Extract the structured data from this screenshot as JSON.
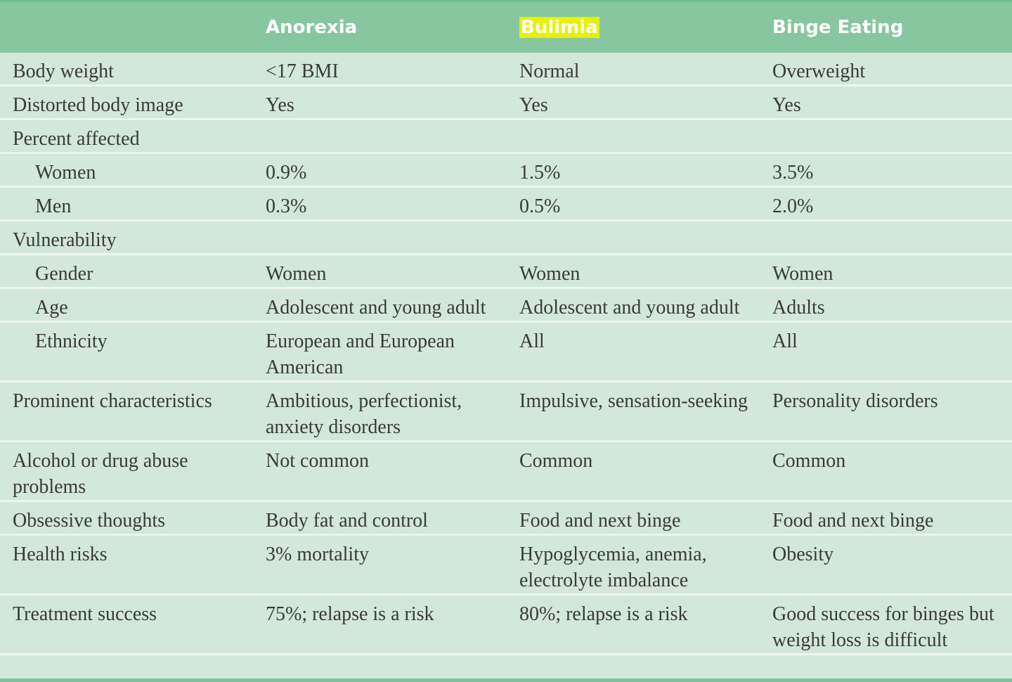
{
  "table": {
    "columns": [
      "Anorexia",
      "Bulimia",
      "Binge Eating"
    ],
    "rows": [
      {
        "label": "Body weight",
        "cells": [
          "<17 BMI",
          "Normal",
          "Overweight"
        ]
      },
      {
        "label": "Distorted body image",
        "cells": [
          "Yes",
          "Yes",
          "Yes"
        ]
      },
      {
        "label": "Percent affected",
        "subrows": [
          {
            "label": "Women",
            "cells": [
              "0.9%",
              "1.5%",
              "3.5%"
            ]
          },
          {
            "label": "Men",
            "cells": [
              "0.3%",
              "0.5%",
              "2.0%"
            ]
          }
        ]
      },
      {
        "label": "Vulnerability",
        "subrows": [
          {
            "label": "Gender",
            "cells": [
              "Women",
              "Women",
              "Women"
            ]
          },
          {
            "label": "Age",
            "cells": [
              "Adolescent and young adult",
              "Adolescent and young adult",
              "Adults"
            ]
          },
          {
            "label": "Ethnicity",
            "cells": [
              "European and European American",
              "All",
              "All"
            ]
          }
        ]
      },
      {
        "label": "Prominent characteristics",
        "cells": [
          "Ambitious, perfectionist, anxiety disorders",
          "Impulsive, sensation-seeking",
          "Personality disorders"
        ]
      },
      {
        "label": "Alcohol or drug abuse problems",
        "cells": [
          "Not common",
          "Common",
          "Common"
        ]
      },
      {
        "label": "Obsessive thoughts",
        "cells": [
          "Body fat and control",
          "Food and next binge",
          "Food and next binge"
        ]
      },
      {
        "label": "Health risks",
        "cells": [
          "3% mortality",
          "Hypoglycemia, anemia, electrolyte imbalance",
          "Obesity"
        ]
      },
      {
        "label": "Treatment success",
        "cells": [
          "75%; relapse is a risk",
          "80%; relapse is a risk",
          "Good success for binges but weight loss is difficult"
        ]
      }
    ]
  }
}
